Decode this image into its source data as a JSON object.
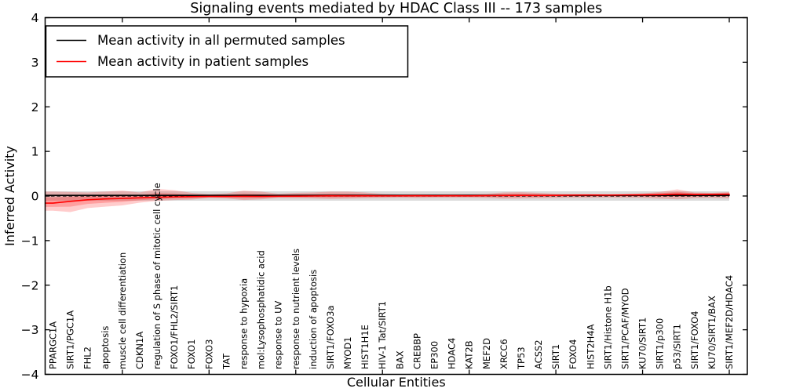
{
  "figure": {
    "title": "Signaling events mediated by HDAC Class III -- 173 samples",
    "xlabel": "Cellular Entities",
    "ylabel": "Inferred Activity"
  },
  "legend": {
    "items": [
      {
        "label": "Mean activity in all permuted samples",
        "color": "#000000"
      },
      {
        "label": "Mean activity in patient samples",
        "color": "#ff0000"
      }
    ]
  },
  "chart_data": {
    "type": "line",
    "title": "Signaling events mediated by HDAC Class III -- 173 samples",
    "xlabel": "Cellular Entities",
    "ylabel": "Inferred Activity",
    "ylim": [
      -4,
      4
    ],
    "yticks": [
      -4,
      -3,
      -2,
      -1,
      0,
      1,
      2,
      3,
      4
    ],
    "x_major_tick_indices": [
      4,
      9,
      14,
      19,
      24,
      29,
      34,
      39
    ],
    "grid": false,
    "legend_position": "upper left",
    "categories": [
      "PPARGC1A",
      "SIRT1/PGC1A",
      "FHL2",
      "apoptosis",
      "muscle cell differentiation",
      "CDKN1A",
      "regulation of S phase of mitotic cell cycle",
      "FOXO1/FHL2/SIRT1",
      "FOXO1",
      "FOXO3",
      "TAT",
      "response to hypoxia",
      "mol:Lysophosphatidic acid",
      "response to UV",
      "response to nutrient levels",
      "induction of apoptosis",
      "SIRT1/FOXO3a",
      "MYOD1",
      "HIST1H1E",
      "HIV-1 Tat/SIRT1",
      "BAX",
      "CREBBP",
      "EP300",
      "HDAC4",
      "KAT2B",
      "MEF2D",
      "XRCC6",
      "TP53",
      "ACSS2",
      "SIRT1",
      "FOXO4",
      "HIST2H4A",
      "SIRT1/Histone H1b",
      "SIRT1/PCAF/MYOD",
      "KU70/SIRT1",
      "SIRT1/p300",
      "p53/SIRT1",
      "SIRT1/FOXO4",
      "KU70/SIRT1/BAX",
      "SIRT1/MEF2D/HDAC4"
    ],
    "series": [
      {
        "name": "Mean activity in all permuted samples",
        "color": "#000000",
        "style": "solid",
        "values": [
          0.015,
          0.015,
          0.015,
          0.015,
          0.015,
          0.015,
          0.015,
          0.015,
          0.015,
          0.015,
          0.015,
          0.015,
          0.015,
          0.015,
          0.015,
          0.015,
          0.015,
          0.015,
          0.015,
          0.015,
          0.015,
          0.015,
          0.015,
          0.015,
          0.015,
          0.015,
          0.015,
          0.015,
          0.015,
          0.015,
          0.015,
          0.015,
          0.015,
          0.015,
          0.015,
          0.015,
          0.015,
          0.015,
          0.015,
          0.015
        ]
      },
      {
        "name": "Mean activity in patient samples",
        "color": "#ff0000",
        "style": "solid",
        "values": [
          -0.16,
          -0.12,
          -0.085,
          -0.065,
          -0.055,
          -0.04,
          -0.03,
          -0.02,
          -0.015,
          -0.01,
          -0.01,
          -0.008,
          -0.01,
          -0.006,
          -0.004,
          0.0,
          0.004,
          0.002,
          0.004,
          0.002,
          0.004,
          0.006,
          0.004,
          0.006,
          0.004,
          0.008,
          0.012,
          0.014,
          0.012,
          0.014,
          0.02,
          0.022,
          0.02,
          0.024,
          0.026,
          0.03,
          0.04,
          0.034,
          0.036,
          0.04
        ]
      }
    ],
    "bands": [
      {
        "name": "permuted-confidence-band",
        "color": "rgba(110,110,110,0.25)",
        "upper": [
          0.105,
          0.105,
          0.105,
          0.105,
          0.105,
          0.105,
          0.105,
          0.105,
          0.105,
          0.105,
          0.105,
          0.105,
          0.105,
          0.105,
          0.105,
          0.105,
          0.105,
          0.105,
          0.105,
          0.105,
          0.105,
          0.105,
          0.105,
          0.105,
          0.105,
          0.105,
          0.105,
          0.105,
          0.105,
          0.105,
          0.105,
          0.105,
          0.105,
          0.105,
          0.105,
          0.105,
          0.105,
          0.105,
          0.105,
          0.105
        ],
        "lower": [
          -0.105,
          -0.105,
          -0.105,
          -0.105,
          -0.105,
          -0.105,
          -0.105,
          -0.105,
          -0.105,
          -0.105,
          -0.105,
          -0.105,
          -0.105,
          -0.105,
          -0.105,
          -0.105,
          -0.105,
          -0.105,
          -0.105,
          -0.105,
          -0.105,
          -0.105,
          -0.105,
          -0.105,
          -0.105,
          -0.105,
          -0.105,
          -0.105,
          -0.105,
          -0.105,
          -0.105,
          -0.105,
          -0.105,
          -0.105,
          -0.105,
          -0.105,
          -0.105,
          -0.105,
          -0.105,
          -0.105
        ]
      },
      {
        "name": "patient-confidence-band",
        "color": "rgba(255,0,0,0.20)",
        "upper": [
          0.1,
          0.09,
          0.08,
          0.1,
          0.12,
          0.08,
          0.16,
          0.13,
          0.07,
          0.04,
          0.06,
          0.12,
          0.1,
          0.05,
          0.07,
          0.08,
          0.1,
          0.1,
          0.08,
          0.05,
          0.04,
          0.045,
          0.04,
          0.045,
          0.045,
          0.05,
          0.08,
          0.085,
          0.07,
          0.05,
          0.045,
          0.045,
          0.04,
          0.045,
          0.06,
          0.09,
          0.15,
          0.08,
          0.07,
          0.09
        ],
        "lower": [
          -0.33,
          -0.36,
          -0.27,
          -0.24,
          -0.21,
          -0.15,
          -0.11,
          -0.09,
          -0.08,
          -0.045,
          -0.055,
          -0.09,
          -0.075,
          -0.045,
          -0.05,
          -0.055,
          -0.065,
          -0.06,
          -0.05,
          -0.045,
          -0.04,
          -0.045,
          -0.04,
          -0.04,
          -0.04,
          -0.045,
          -0.06,
          -0.055,
          -0.05,
          -0.045,
          -0.04,
          -0.04,
          -0.035,
          -0.04,
          -0.045,
          -0.06,
          -0.075,
          -0.05,
          -0.045,
          -0.055
        ]
      }
    ],
    "zero_line": {
      "value": 0,
      "style": "dashed",
      "color": "#000000"
    }
  }
}
